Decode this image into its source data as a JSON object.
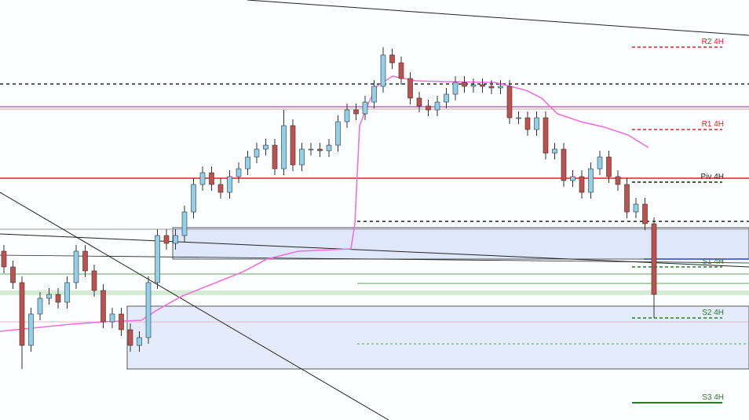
{
  "chart_data": {
    "type": "candlestick",
    "ylim": [
      0,
      535
    ],
    "up_color": "#8fd0ea",
    "down_color": "#c0504d",
    "outline_color": "#333333",
    "open": [
      215,
      195,
      175,
      95,
      135,
      155,
      160,
      150,
      175,
      215,
      190,
      165,
      125,
      135,
      115,
      95,
      105,
      175,
      235,
      225,
      235,
      265,
      300,
      315,
      300,
      290,
      310,
      320,
      335,
      345,
      350,
      320,
      375,
      325,
      345,
      345,
      343,
      350,
      380,
      395,
      390,
      405,
      425,
      465,
      455,
      435,
      410,
      400,
      395,
      405,
      415,
      430,
      425,
      427,
      425,
      423,
      425,
      385,
      385,
      370,
      385,
      340,
      345,
      305,
      310,
      290,
      320,
      335,
      310,
      300,
      265,
      275,
      250
    ],
    "high": [
      223,
      203,
      183,
      143,
      163,
      168,
      168,
      183,
      223,
      223,
      198,
      173,
      143,
      143,
      123,
      113,
      183,
      243,
      243,
      243,
      273,
      308,
      323,
      323,
      308,
      318,
      328,
      343,
      353,
      358,
      358,
      395,
      383,
      353,
      353,
      353,
      358,
      388,
      403,
      403,
      413,
      433,
      475,
      473,
      463,
      443,
      418,
      408,
      413,
      423,
      438,
      438,
      435,
      435,
      433,
      433,
      433,
      393,
      393,
      393,
      393,
      353,
      353,
      318,
      318,
      328,
      343,
      343,
      318,
      308,
      283,
      283,
      258
    ],
    "low": [
      187,
      167,
      65,
      87,
      127,
      147,
      142,
      142,
      167,
      182,
      157,
      117,
      117,
      107,
      87,
      87,
      97,
      167,
      217,
      217,
      227,
      257,
      292,
      292,
      282,
      282,
      302,
      312,
      327,
      337,
      312,
      312,
      317,
      317,
      337,
      335,
      335,
      342,
      372,
      382,
      382,
      397,
      417,
      447,
      427,
      402,
      392,
      387,
      387,
      397,
      407,
      417,
      417,
      417,
      415,
      415,
      377,
      377,
      362,
      362,
      332,
      332,
      297,
      297,
      282,
      282,
      312,
      302,
      292,
      257,
      257,
      242,
      130
    ],
    "close": [
      195,
      175,
      95,
      135,
      155,
      160,
      150,
      175,
      215,
      190,
      165,
      125,
      135,
      115,
      95,
      105,
      175,
      235,
      225,
      235,
      265,
      300,
      315,
      300,
      290,
      310,
      320,
      335,
      345,
      350,
      320,
      375,
      325,
      345,
      345,
      343,
      350,
      380,
      395,
      390,
      405,
      425,
      465,
      455,
      435,
      410,
      400,
      395,
      405,
      415,
      430,
      425,
      427,
      425,
      423,
      425,
      385,
      385,
      370,
      385,
      340,
      345,
      305,
      310,
      290,
      320,
      335,
      310,
      300,
      265,
      275,
      250,
      160
    ],
    "levels": [
      {
        "label": "R2 4H",
        "value": 475,
        "color": "#e02020"
      },
      {
        "label": "R1 4H",
        "value": 370,
        "color": "#e02020"
      },
      {
        "label": "Piv 4H",
        "value": 303,
        "color": "#222222"
      },
      {
        "label": "S1 4H",
        "value": 195,
        "color": "#2a7a2a"
      },
      {
        "label": "S2 4H",
        "value": 130,
        "color": "#2a7a2a"
      },
      {
        "label": "S3 4H",
        "value": 22,
        "color": "#2a7a2a"
      }
    ]
  }
}
